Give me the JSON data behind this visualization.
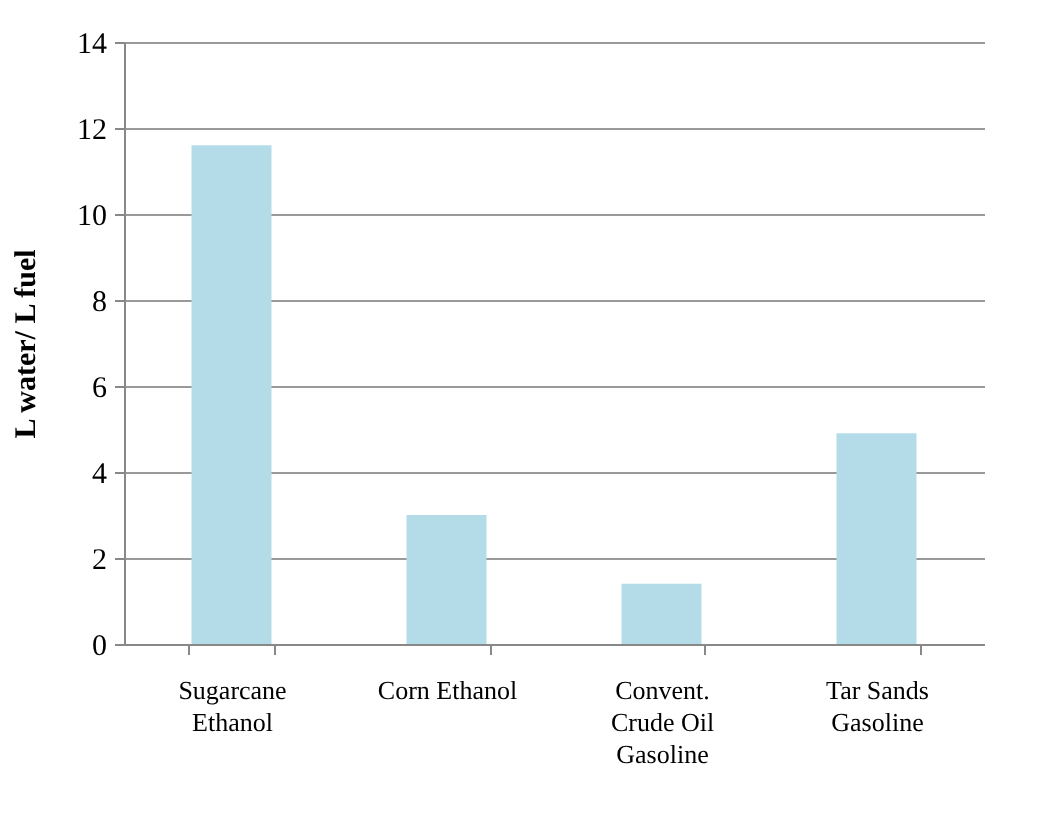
{
  "chart_data": {
    "type": "bar",
    "ylabel": "L water/ L fuel",
    "categories": [
      "Sugarcane Ethanol",
      "Corn Ethanol",
      "Convent. Crude Oil Gasoline",
      "Tar Sands Gasoline"
    ],
    "values": [
      11.6,
      3.0,
      1.4,
      4.9
    ],
    "color": "#b4dce8",
    "ylim": [
      0,
      14
    ],
    "yticks": [
      0,
      2,
      4,
      6,
      8,
      10,
      12,
      14
    ],
    "grid": "y"
  }
}
